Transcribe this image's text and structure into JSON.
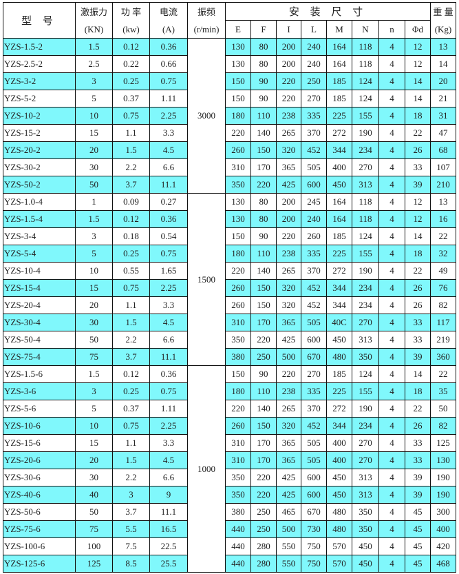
{
  "header": {
    "model": "型 号",
    "force": [
      "激振力",
      "(KN)"
    ],
    "power": [
      "功 率",
      "(kw)"
    ],
    "current": [
      "电流",
      "(A)"
    ],
    "freq": [
      "振频",
      "(r/min)"
    ],
    "install": "安 装 尺 寸",
    "dims": [
      "E",
      "F",
      "I",
      "L",
      "M",
      "N",
      "n",
      "Φd"
    ],
    "weight": [
      "重 量",
      "(Kg)"
    ]
  },
  "highlight_color": "#80f8fc",
  "groups": [
    {
      "freq": "3000",
      "rows": [
        [
          "YZS-1.5-2",
          "1.5",
          "0.12",
          "0.36",
          "130",
          "80",
          "200",
          "240",
          "164",
          "118",
          "4",
          "12",
          "13"
        ],
        [
          "YZS-2.5-2",
          "2.5",
          "0.22",
          "0.66",
          "130",
          "80",
          "200",
          "240",
          "164",
          "118",
          "4",
          "12",
          "14"
        ],
        [
          "YZS-3-2",
          "3",
          "0.25",
          "0.75",
          "150",
          "90",
          "220",
          "250",
          "185",
          "124",
          "4",
          "14",
          "20"
        ],
        [
          "YZS-5-2",
          "5",
          "0.37",
          "1.11",
          "150",
          "90",
          "220",
          "270",
          "185",
          "124",
          "4",
          "14",
          "21"
        ],
        [
          "YZS-10-2",
          "10",
          "0.75",
          "2.25",
          "180",
          "110",
          "238",
          "335",
          "225",
          "155",
          "4",
          "18",
          "31"
        ],
        [
          "YZS-15-2",
          "15",
          "1.1",
          "3.3",
          "220",
          "140",
          "265",
          "370",
          "272",
          "190",
          "4",
          "22",
          "47"
        ],
        [
          "YZS-20-2",
          "20",
          "1.5",
          "4.5",
          "260",
          "150",
          "320",
          "452",
          "344",
          "234",
          "4",
          "26",
          "68"
        ],
        [
          "YZS-30-2",
          "30",
          "2.2",
          "6.6",
          "310",
          "170",
          "365",
          "505",
          "400",
          "270",
          "4",
          "33",
          "107"
        ],
        [
          "YZS-50-2",
          "50",
          "3.7",
          "11.1",
          "350",
          "220",
          "425",
          "600",
          "450",
          "313",
          "4",
          "39",
          "210"
        ]
      ],
      "highlight_start": 0
    },
    {
      "freq": "1500",
      "rows": [
        [
          "YZS-1.0-4",
          "1",
          "0.09",
          "0.27",
          "130",
          "80",
          "200",
          "245",
          "164",
          "118",
          "4",
          "12",
          "13"
        ],
        [
          "YZS-1.5-4",
          "1.5",
          "0.12",
          "0.36",
          "130",
          "80",
          "200",
          "240",
          "164",
          "118",
          "4",
          "12",
          "16"
        ],
        [
          "YZS-3-4",
          "3",
          "0.18",
          "0.54",
          "150",
          "90",
          "220",
          "260",
          "185",
          "124",
          "4",
          "14",
          "22"
        ],
        [
          "YZS-5-4",
          "5",
          "0.25",
          "0.75",
          "180",
          "110",
          "238",
          "335",
          "225",
          "155",
          "4",
          "18",
          "32"
        ],
        [
          "YZS-10-4",
          "10",
          "0.55",
          "1.65",
          "220",
          "140",
          "265",
          "370",
          "272",
          "190",
          "4",
          "22",
          "49"
        ],
        [
          "YZS-15-4",
          "15",
          "0.75",
          "2.25",
          "260",
          "150",
          "320",
          "452",
          "344",
          "234",
          "4",
          "26",
          "76"
        ],
        [
          "YZS-20-4",
          "20",
          "1.1",
          "3.3",
          "260",
          "150",
          "320",
          "452",
          "344",
          "234",
          "4",
          "26",
          "82"
        ],
        [
          "YZS-30-4",
          "30",
          "1.5",
          "4.5",
          "310",
          "170",
          "365",
          "505",
          "40C",
          "270",
          "4",
          "33",
          "117"
        ],
        [
          "YZS-50-4",
          "50",
          "2.2",
          "6.6",
          "350",
          "220",
          "425",
          "600",
          "450",
          "313",
          "4",
          "33",
          "219"
        ],
        [
          "YZS-75-4",
          "75",
          "3.7",
          "11.1",
          "380",
          "250",
          "500",
          "670",
          "480",
          "350",
          "4",
          "39",
          "360"
        ]
      ],
      "highlight_start": 1
    },
    {
      "freq": "1000",
      "rows": [
        [
          "YZS-1.5-6",
          "1.5",
          "0.12",
          "0.36",
          "150",
          "90",
          "220",
          "270",
          "185",
          "124",
          "4",
          "14",
          "22"
        ],
        [
          "YZS-3-6",
          "3",
          "0.25",
          "0.75",
          "180",
          "110",
          "238",
          "335",
          "225",
          "155",
          "4",
          "18",
          "35"
        ],
        [
          "YZS-5-6",
          "5",
          "0.37",
          "1.11",
          "220",
          "140",
          "265",
          "370",
          "272",
          "190",
          "4",
          "22",
          "50"
        ],
        [
          "YZS-10-6",
          "10",
          "0.75",
          "2.25",
          "260",
          "150",
          "320",
          "452",
          "344",
          "234",
          "4",
          "26",
          "82"
        ],
        [
          "YZS-15-6",
          "15",
          "1.1",
          "3.3",
          "310",
          "170",
          "365",
          "505",
          "400",
          "270",
          "4",
          "33",
          "125"
        ],
        [
          "YZS-20-6",
          "20",
          "1.5",
          "4.5",
          "310",
          "170",
          "365",
          "505",
          "400",
          "270",
          "4",
          "33",
          "130"
        ],
        [
          "YZS-30-6",
          "30",
          "2.2",
          "6.6",
          "350",
          "220",
          "425",
          "600",
          "450",
          "313",
          "4",
          "39",
          "190"
        ],
        [
          "YZS-40-6",
          "40",
          "3",
          "9",
          "350",
          "220",
          "425",
          "600",
          "450",
          "313",
          "4",
          "39",
          "190"
        ],
        [
          "YZS-50-6",
          "50",
          "3.7",
          "11.1",
          "380",
          "250",
          "465",
          "670",
          "480",
          "350",
          "4",
          "45",
          "300"
        ],
        [
          "YZS-75-6",
          "75",
          "5.5",
          "16.5",
          "440",
          "250",
          "500",
          "730",
          "480",
          "350",
          "4",
          "45",
          "400"
        ],
        [
          "YZS-100-6",
          "100",
          "7.5",
          "22.5",
          "440",
          "280",
          "550",
          "750",
          "570",
          "450",
          "4",
          "45",
          "420"
        ],
        [
          "YZS-125-6",
          "125",
          "8.5",
          "25.5",
          "440",
          "280",
          "550",
          "750",
          "570",
          "450",
          "4",
          "45",
          "468"
        ]
      ],
      "highlight_start": 1
    }
  ]
}
